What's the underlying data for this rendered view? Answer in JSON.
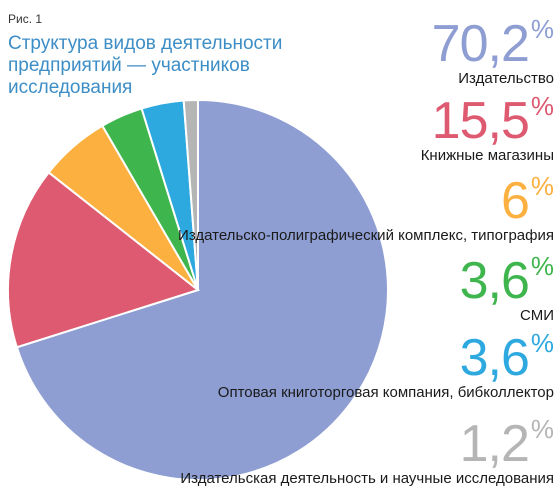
{
  "figure_label": "Рис. 1",
  "chart_data": {
    "type": "pie",
    "title": "Структура видов деятельности предприятий — участников исследования",
    "unit": "%",
    "slices": [
      {
        "label": "Издательство",
        "value_text": "70,2",
        "value": 70.2,
        "color": "#8e9ed2"
      },
      {
        "label": "Книжные магазины",
        "value_text": "15,5",
        "value": 15.5,
        "color": "#dd5a70"
      },
      {
        "label": "Издательско-полиграфический комплекс, типография",
        "value_text": "6",
        "value": 6,
        "color": "#fbb040"
      },
      {
        "label": "СМИ",
        "value_text": "3,6",
        "value": 3.6,
        "color": "#3fb54e"
      },
      {
        "label": "Оптовая книготорговая компания, бибколлектор",
        "value_text": "3,6",
        "value": 3.6,
        "color": "#2ea9e0"
      },
      {
        "label": "Издательская деятельность и научные исследования",
        "value_text": "1,2",
        "value": 1.2,
        "color": "#b5b5b5"
      }
    ]
  }
}
